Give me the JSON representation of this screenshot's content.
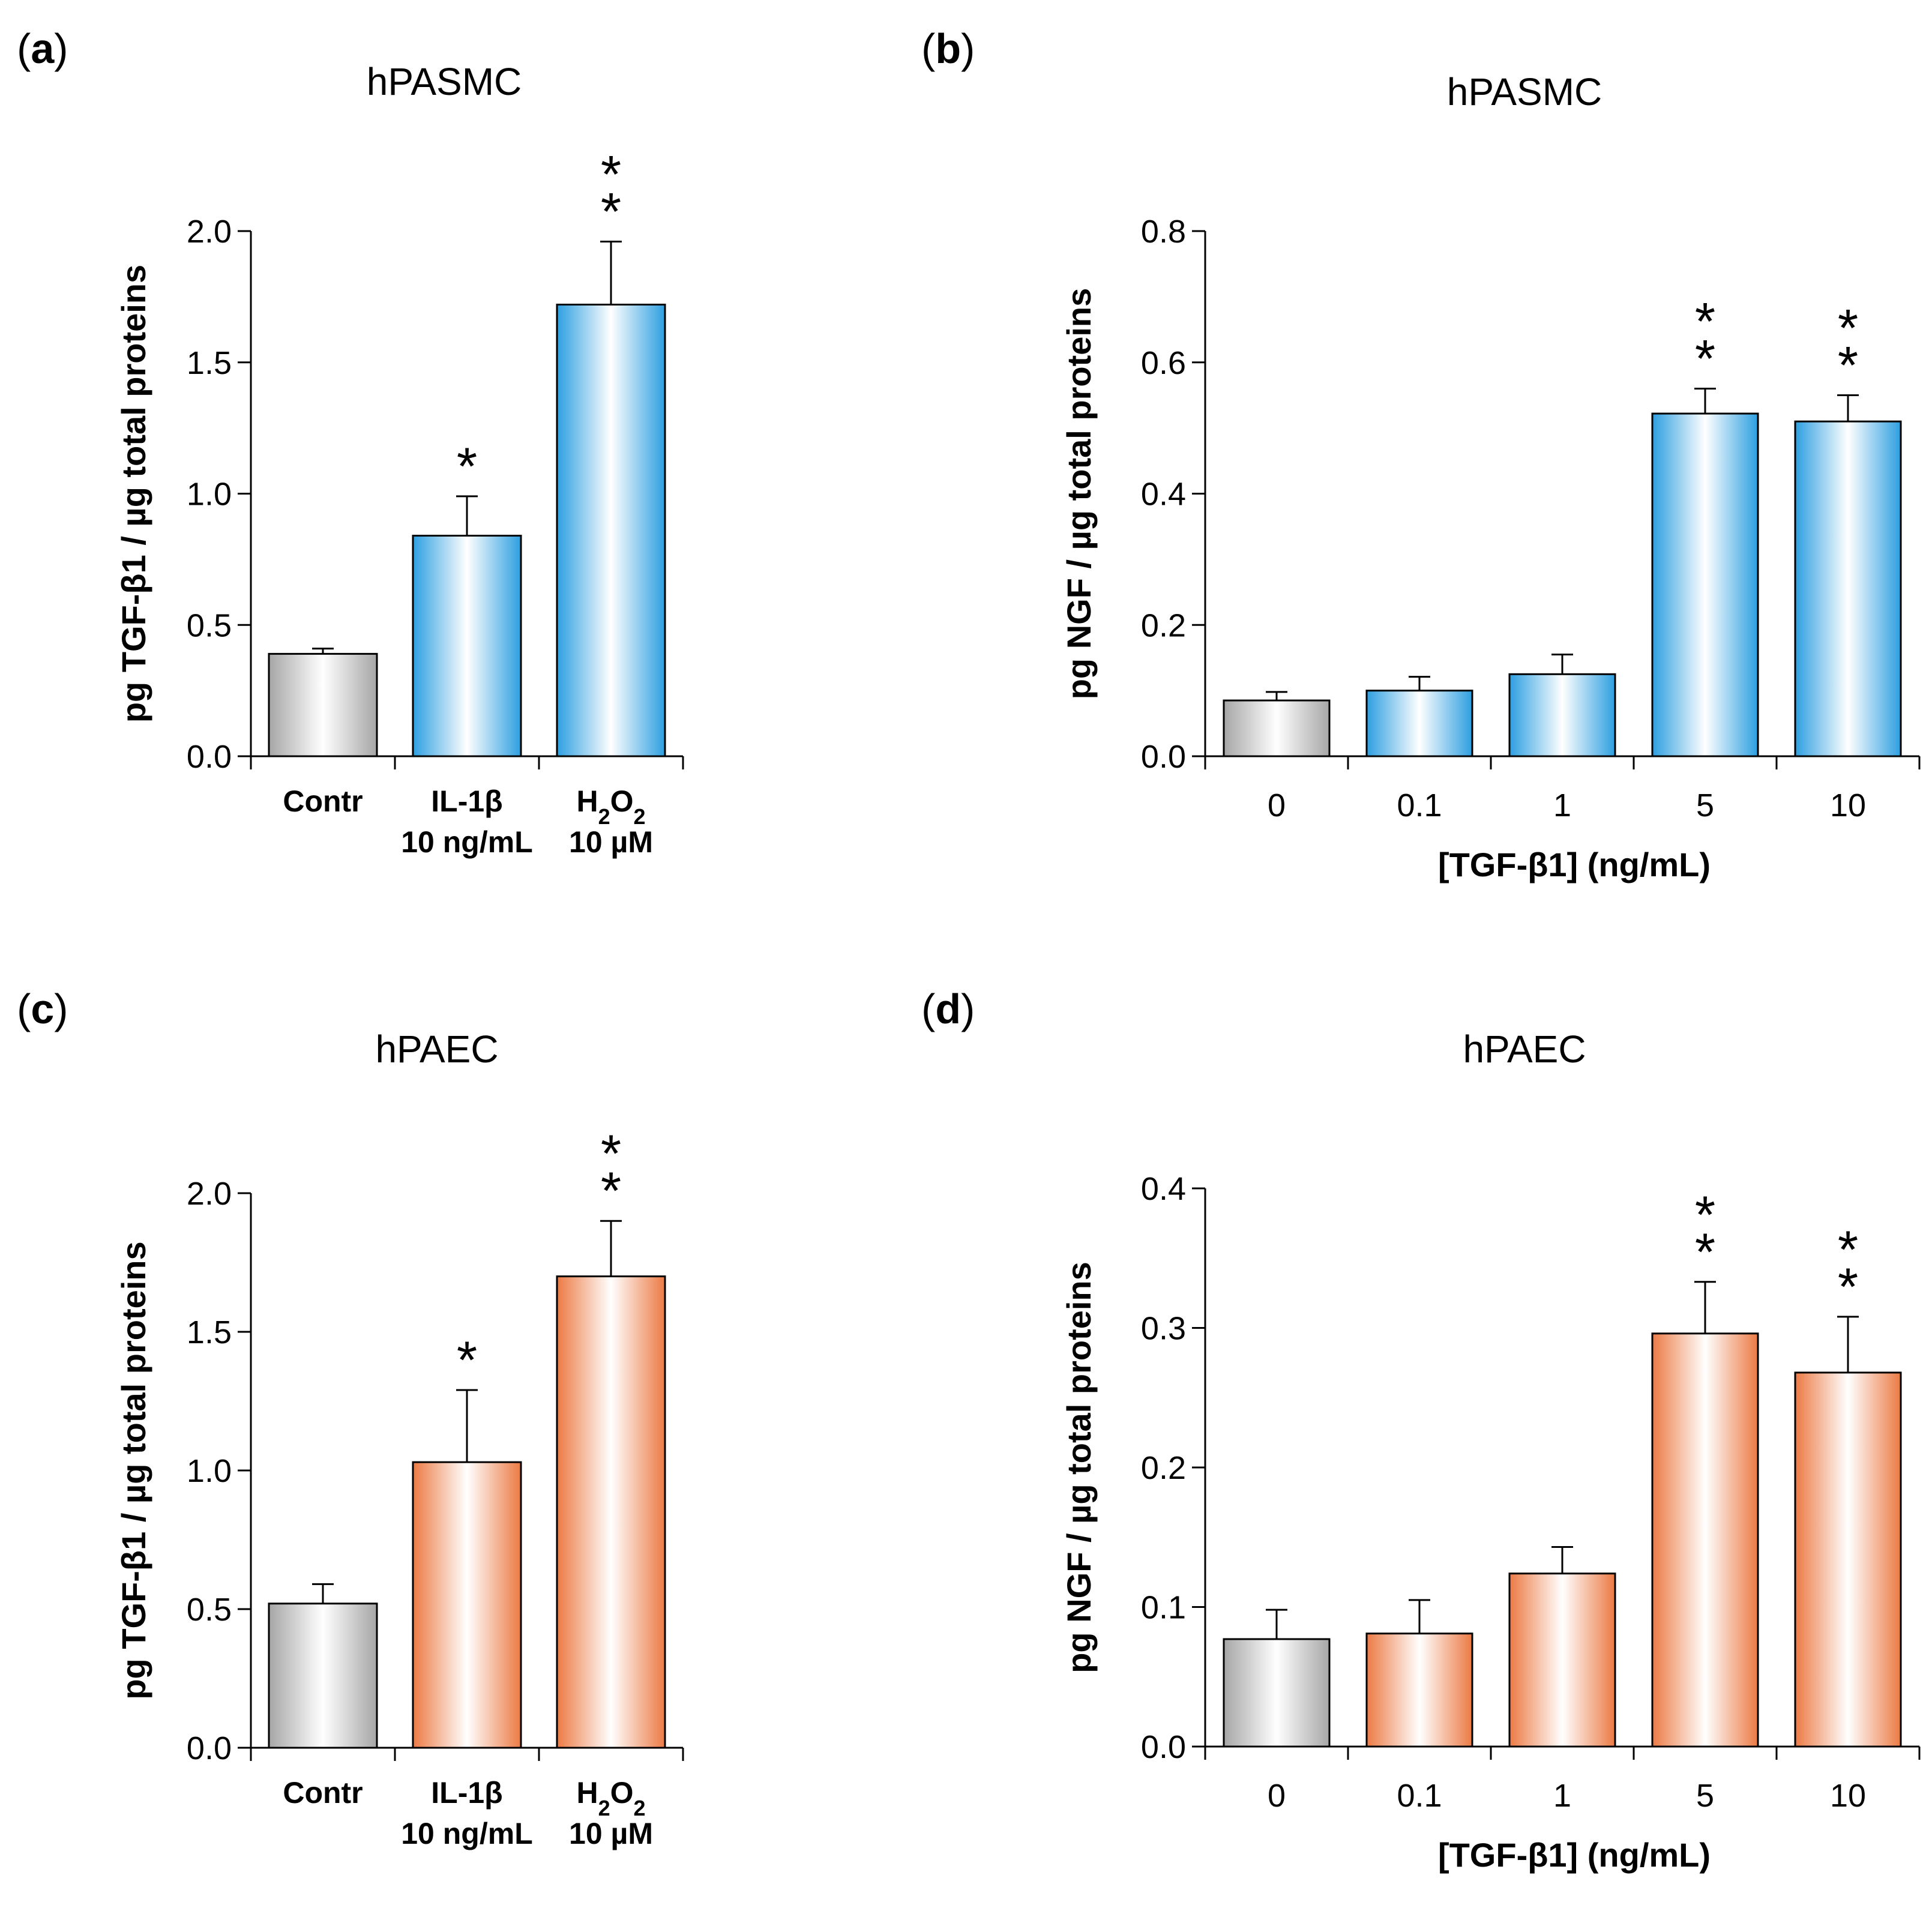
{
  "chart_data": [
    {
      "panel": "a",
      "type": "bar",
      "title": "hPASMC",
      "ylabel": "pg TGF-β1 / µg total proteins",
      "xlabel": "",
      "ylim": [
        0,
        2.0
      ],
      "yticks": [
        0.0,
        0.5,
        1.0,
        1.5,
        2.0
      ],
      "ytick_labels": [
        "0.0",
        "0.5",
        "1.0",
        "1.5",
        "2.0"
      ],
      "categories": [
        {
          "line1": "Contr",
          "line2": ""
        },
        {
          "line1": "IL-1β",
          "line2": "10 ng/mL"
        },
        {
          "line1": "H2O2",
          "line2": "10 µM",
          "chem": true
        }
      ],
      "values": [
        0.39,
        0.84,
        1.72
      ],
      "errors": [
        0.02,
        0.15,
        0.24
      ],
      "significance": [
        "",
        "*",
        "**"
      ],
      "colors": [
        "gray",
        "blue",
        "blue"
      ]
    },
    {
      "panel": "b",
      "type": "bar",
      "title": "hPASMC",
      "ylabel": "pg NGF / µg total proteins",
      "xlabel": "[TGF-β1] (ng/mL)",
      "ylim": [
        0,
        0.8
      ],
      "yticks": [
        0.0,
        0.2,
        0.4,
        0.6,
        0.8
      ],
      "ytick_labels": [
        "0.0",
        "0.2",
        "0.4",
        "0.6",
        "0.8"
      ],
      "categories": [
        {
          "line1": "0",
          "line2": ""
        },
        {
          "line1": "0.1",
          "line2": ""
        },
        {
          "line1": "1",
          "line2": ""
        },
        {
          "line1": "5",
          "line2": ""
        },
        {
          "line1": "10",
          "line2": ""
        }
      ],
      "values": [
        0.085,
        0.1,
        0.125,
        0.522,
        0.51
      ],
      "errors": [
        0.013,
        0.021,
        0.03,
        0.038,
        0.04
      ],
      "significance": [
        "",
        "",
        "",
        "**",
        "**"
      ],
      "colors": [
        "gray",
        "blue",
        "blue",
        "blue",
        "blue"
      ]
    },
    {
      "panel": "c",
      "type": "bar",
      "title": "hPAEC",
      "ylabel": "pg TGF-β1 / µg total proteins",
      "xlabel": "",
      "ylim": [
        0,
        2.0
      ],
      "yticks": [
        0.0,
        0.5,
        1.0,
        1.5,
        2.0
      ],
      "ytick_labels": [
        "0.0",
        "0.5",
        "1.0",
        "1.5",
        "2.0"
      ],
      "categories": [
        {
          "line1": "Contr",
          "line2": ""
        },
        {
          "line1": "IL-1β",
          "line2": "10 ng/mL"
        },
        {
          "line1": "H2O2",
          "line2": "10 µM",
          "chem": true
        }
      ],
      "values": [
        0.52,
        1.03,
        1.7
      ],
      "errors": [
        0.07,
        0.26,
        0.2
      ],
      "significance": [
        "",
        "*",
        "**"
      ],
      "colors": [
        "gray",
        "orange",
        "orange"
      ]
    },
    {
      "panel": "d",
      "type": "bar",
      "title": "hPAEC",
      "ylabel": "pg NGF / µg total proteins",
      "xlabel": "[TGF-β1] (ng/mL)",
      "ylim": [
        0,
        0.4
      ],
      "yticks": [
        0.0,
        0.1,
        0.2,
        0.3,
        0.4
      ],
      "ytick_labels": [
        "0.0",
        "0.1",
        "0.2",
        "0.3",
        "0.4"
      ],
      "categories": [
        {
          "line1": "0",
          "line2": ""
        },
        {
          "line1": "0.1",
          "line2": ""
        },
        {
          "line1": "1",
          "line2": ""
        },
        {
          "line1": "5",
          "line2": ""
        },
        {
          "line1": "10",
          "line2": ""
        }
      ],
      "values": [
        0.077,
        0.081,
        0.124,
        0.296,
        0.268
      ],
      "errors": [
        0.021,
        0.024,
        0.019,
        0.037,
        0.04
      ],
      "significance": [
        "",
        "",
        "",
        "**",
        "**"
      ],
      "colors": [
        "gray",
        "orange",
        "orange",
        "orange",
        "orange"
      ]
    }
  ]
}
